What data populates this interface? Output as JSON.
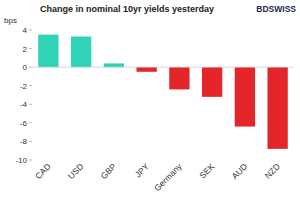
{
  "chart_data": {
    "type": "bar",
    "title": "Change in nominal 10yr yields yesterday",
    "y_label": "bps",
    "annotations": [
      "BDSWISS"
    ],
    "categories": [
      "CAD",
      "USD",
      "GBP",
      "JPY",
      "Germany",
      "SEK",
      "AUD",
      "NZD"
    ],
    "values": [
      3.5,
      3.3,
      0.4,
      -0.5,
      -2.4,
      -3.2,
      -6.4,
      -8.8
    ],
    "colors": [
      "#2fd3b5",
      "#2fd3b5",
      "#2fd3b5",
      "#e4262b",
      "#e4262b",
      "#e4262b",
      "#e4262b",
      "#e4262b"
    ],
    "ylim": [
      -10,
      4
    ],
    "yticks": [
      -10,
      -8,
      -6,
      -4,
      -2,
      0,
      2,
      4
    ],
    "grid": false
  }
}
